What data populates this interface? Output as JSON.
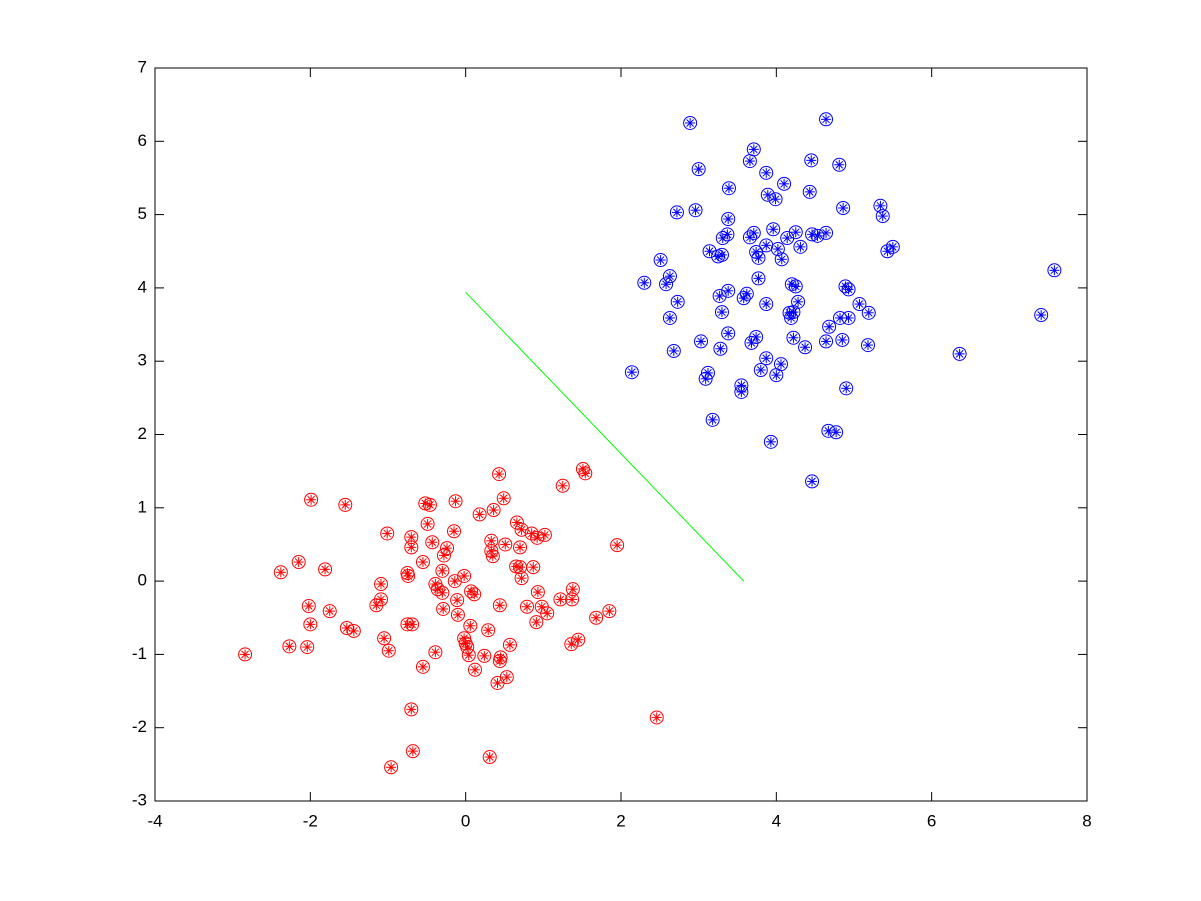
{
  "chart_data": {
    "type": "scatter",
    "xlim": [
      -4,
      8
    ],
    "ylim": [
      -3,
      7
    ],
    "xticks": [
      -4,
      -2,
      0,
      2,
      4,
      6,
      8
    ],
    "yticks": [
      -3,
      -2,
      -1,
      0,
      1,
      2,
      3,
      4,
      5,
      6,
      7
    ],
    "grid": false,
    "box": true,
    "series": [
      {
        "color": "#0000ff",
        "marker": "circle-star",
        "x": [
          2.89,
          4.64,
          3.71,
          3.0,
          3.66,
          4.45,
          4.81,
          3.87,
          3.39,
          4.1,
          3.89,
          3.99,
          4.43,
          2.72,
          2.96,
          4.86,
          5.34,
          5.37,
          3.38,
          3.14,
          3.25,
          3.3,
          3.37,
          3.31,
          3.66,
          3.71,
          3.96,
          4.25,
          4.14,
          4.46,
          4.53,
          4.64,
          3.87,
          4.02,
          3.74,
          3.77,
          4.07,
          4.31,
          2.51,
          5.43,
          5.5,
          7.58,
          2.63,
          2.58,
          2.3,
          3.77,
          4.2,
          4.25,
          4.89,
          4.93,
          3.38,
          3.27,
          3.62,
          3.58,
          2.73,
          3.87,
          4.28,
          5.07,
          3.3,
          4.17,
          4.19,
          4.22,
          4.82,
          4.93,
          5.19,
          2.63,
          7.41,
          4.68,
          3.38,
          3.74,
          4.22,
          3.03,
          3.68,
          4.37,
          4.64,
          4.85,
          5.18,
          2.68,
          3.28,
          6.36,
          3.87,
          4.06,
          2.14,
          3.12,
          3.09,
          3.8,
          4.0,
          3.55,
          3.55,
          4.9,
          3.18,
          4.67,
          4.77,
          3.93,
          4.46
        ],
        "y": [
          6.25,
          6.3,
          5.89,
          5.62,
          5.73,
          5.74,
          5.68,
          5.57,
          5.36,
          5.42,
          5.27,
          5.21,
          5.31,
          5.03,
          5.06,
          5.09,
          5.12,
          4.98,
          4.94,
          4.5,
          4.43,
          4.45,
          4.73,
          4.68,
          4.69,
          4.75,
          4.8,
          4.76,
          4.68,
          4.73,
          4.71,
          4.75,
          4.58,
          4.53,
          4.49,
          4.41,
          4.39,
          4.56,
          4.38,
          4.5,
          4.56,
          4.24,
          4.16,
          4.05,
          4.07,
          4.13,
          4.05,
          4.02,
          4.02,
          3.98,
          3.96,
          3.89,
          3.92,
          3.86,
          3.81,
          3.78,
          3.81,
          3.78,
          3.67,
          3.66,
          3.59,
          3.67,
          3.59,
          3.59,
          3.66,
          3.59,
          3.63,
          3.47,
          3.38,
          3.33,
          3.32,
          3.27,
          3.25,
          3.19,
          3.27,
          3.29,
          3.22,
          3.14,
          3.17,
          3.1,
          3.04,
          2.96,
          2.85,
          2.84,
          2.76,
          2.88,
          2.81,
          2.67,
          2.58,
          2.63,
          2.2,
          2.05,
          2.03,
          1.9,
          1.36
        ]
      },
      {
        "color": "#ff0000",
        "marker": "circle-star",
        "x": [
          0.43,
          1.51,
          1.54,
          1.25,
          -1.99,
          -1.55,
          -0.52,
          -0.46,
          -0.13,
          0.49,
          0.18,
          0.36,
          -1.01,
          -0.49,
          0.66,
          0.72,
          0.85,
          0.92,
          1.02,
          -0.15,
          -0.7,
          -0.7,
          -0.43,
          -0.24,
          -0.28,
          0.33,
          0.33,
          0.35,
          0.51,
          0.7,
          1.95,
          -2.15,
          -0.55,
          -0.3,
          0.65,
          0.7,
          0.87,
          -2.38,
          -1.81,
          -0.75,
          -0.74,
          -0.02,
          -0.14,
          0.72,
          -1.09,
          -0.39,
          -0.36,
          -0.3,
          0.07,
          0.11,
          -1.09,
          -0.11,
          0.93,
          1.38,
          1.22,
          1.37,
          -1.15,
          -2.02,
          -1.75,
          -0.29,
          0.44,
          0.79,
          0.98,
          1.05,
          1.85,
          1.68,
          0.91,
          -0.1,
          -2.0,
          -0.75,
          -0.69,
          0.06,
          -1.53,
          -1.44,
          0.29,
          -1.05,
          -0.02,
          1.36,
          1.45,
          0.0,
          0.02,
          -2.27,
          -2.04,
          0.57,
          -0.99,
          -0.39,
          0.04,
          0.24,
          0.45,
          0.44,
          -2.84,
          -0.55,
          0.12,
          0.53,
          0.41,
          -0.7,
          2.46,
          -0.68,
          -0.96,
          0.31
        ],
        "y": [
          1.46,
          1.53,
          1.47,
          1.3,
          1.11,
          1.04,
          1.06,
          1.04,
          1.09,
          1.13,
          0.91,
          0.97,
          0.65,
          0.78,
          0.8,
          0.7,
          0.65,
          0.59,
          0.63,
          0.68,
          0.6,
          0.46,
          0.53,
          0.45,
          0.35,
          0.55,
          0.41,
          0.34,
          0.5,
          0.46,
          0.49,
          0.26,
          0.26,
          0.14,
          0.2,
          0.19,
          0.19,
          0.12,
          0.16,
          0.11,
          0.07,
          0.07,
          0.0,
          0.04,
          -0.04,
          -0.04,
          -0.11,
          -0.16,
          -0.14,
          -0.18,
          -0.25,
          -0.26,
          -0.15,
          -0.11,
          -0.25,
          -0.25,
          -0.33,
          -0.34,
          -0.41,
          -0.38,
          -0.33,
          -0.35,
          -0.35,
          -0.44,
          -0.41,
          -0.5,
          -0.56,
          -0.46,
          -0.59,
          -0.59,
          -0.59,
          -0.61,
          -0.64,
          -0.68,
          -0.67,
          -0.78,
          -0.78,
          -0.86,
          -0.8,
          -0.85,
          -0.9,
          -0.89,
          -0.9,
          -0.87,
          -0.95,
          -0.97,
          -1.01,
          -1.02,
          -1.04,
          -1.09,
          -1.0,
          -1.17,
          -1.21,
          -1.31,
          -1.39,
          -1.75,
          -1.86,
          -2.32,
          -2.54,
          -2.4
        ]
      },
      {
        "type": "line",
        "color": "#00ff00",
        "x": [
          0,
          3.58
        ],
        "y": [
          3.94,
          0
        ]
      }
    ]
  }
}
